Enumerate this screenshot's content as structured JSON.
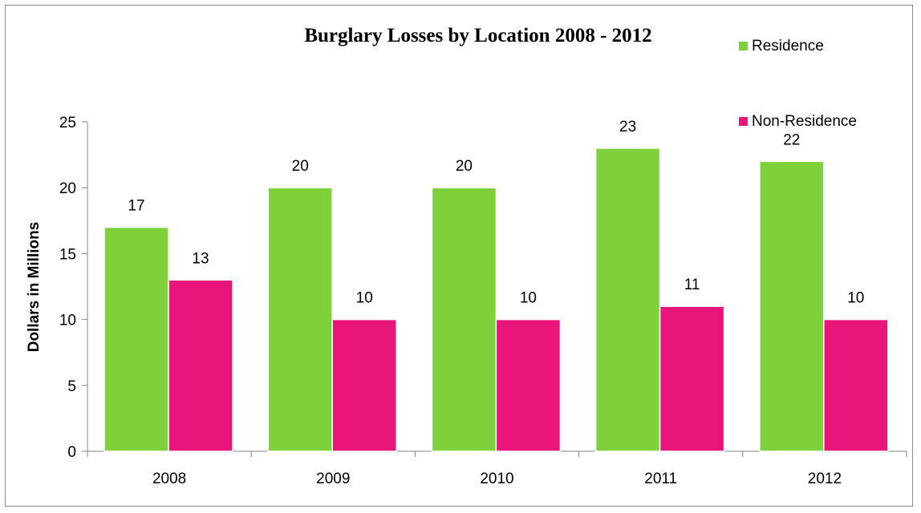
{
  "chart_data": {
    "type": "bar",
    "title": "Burglary Losses by Location 2008 - 2012",
    "xlabel": "",
    "ylabel": "Dollars in Millions",
    "categories": [
      "2008",
      "2009",
      "2010",
      "2011",
      "2012"
    ],
    "series": [
      {
        "name": "Residence",
        "values": [
          17,
          20,
          20,
          23,
          22
        ],
        "color": "#7fd13b"
      },
      {
        "name": "Non-Residence",
        "values": [
          13,
          10,
          10,
          11,
          10
        ],
        "color": "#ea157a"
      }
    ],
    "ylim": [
      0,
      25
    ],
    "yticks": [
      0,
      5,
      10,
      15,
      20,
      25
    ],
    "grid": false,
    "legend_position": "top-right",
    "data_labels": true
  }
}
